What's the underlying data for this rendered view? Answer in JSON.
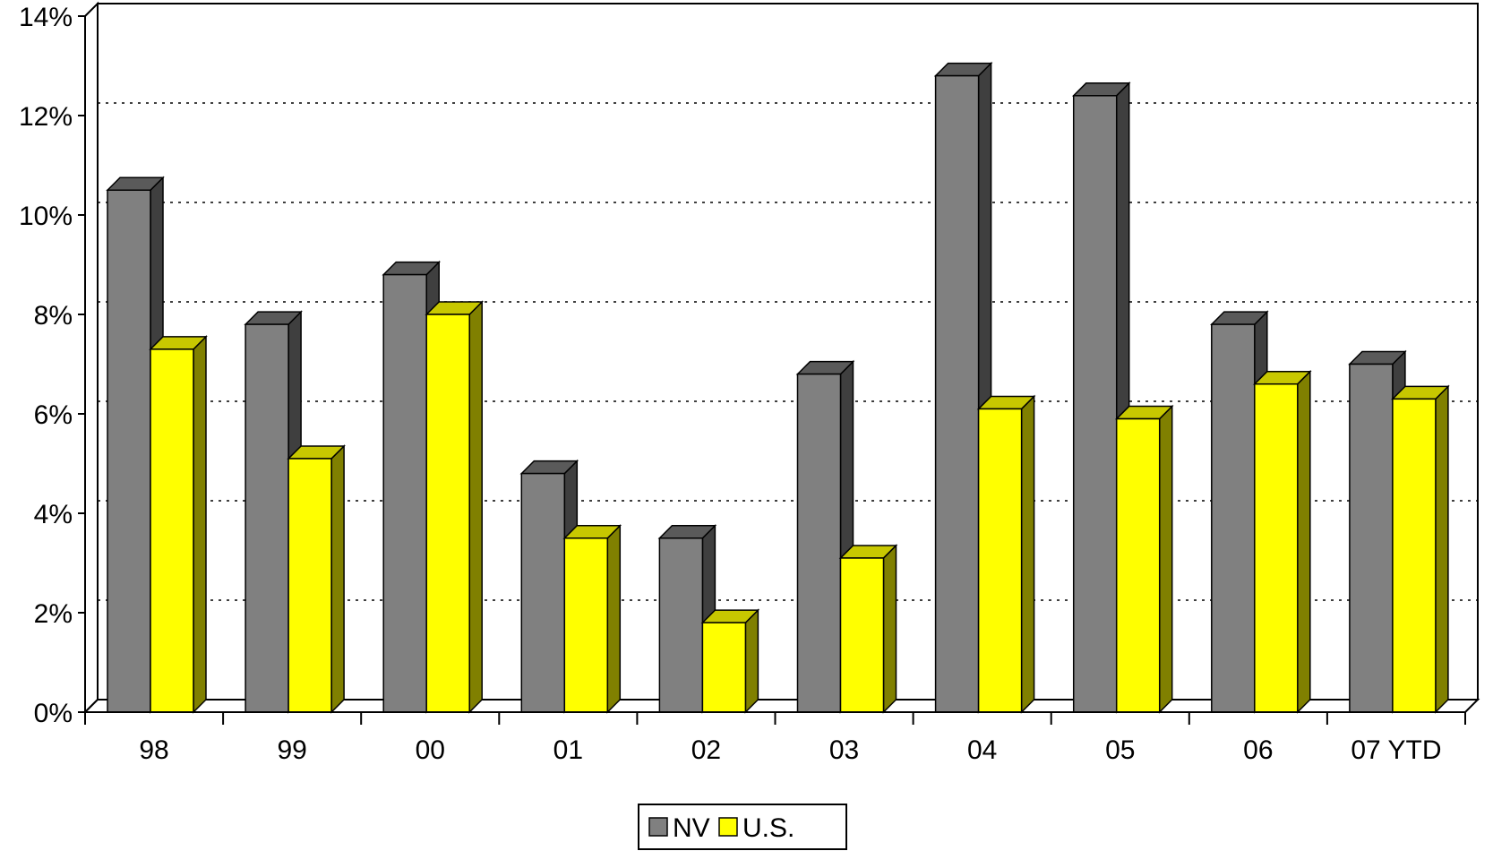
{
  "chart_data": {
    "type": "bar",
    "title": "",
    "xlabel": "",
    "ylabel": "",
    "categories": [
      "98",
      "99",
      "00",
      "01",
      "02",
      "03",
      "04",
      "05",
      "06",
      "07 YTD"
    ],
    "series": [
      {
        "name": "NV",
        "values": [
          10.5,
          7.8,
          8.8,
          4.8,
          3.5,
          6.8,
          12.8,
          12.4,
          7.8,
          7.0
        ]
      },
      {
        "name": "U.S.",
        "values": [
          7.3,
          5.1,
          8.0,
          3.5,
          1.8,
          3.1,
          6.1,
          5.9,
          6.6,
          6.3
        ]
      }
    ],
    "ylim": [
      0,
      14
    ],
    "yticks": [
      0,
      2,
      4,
      6,
      8,
      10,
      12,
      14
    ],
    "ytick_format": "%",
    "grid": true,
    "legend_position": "bottom-center",
    "style": "3d-column",
    "colors": {
      "NV": {
        "front": "#808080",
        "top": "#5a5a5a",
        "side": "#3f3f3f"
      },
      "U.S.": {
        "front": "#ffff00",
        "top": "#c8c800",
        "side": "#808000"
      }
    }
  }
}
